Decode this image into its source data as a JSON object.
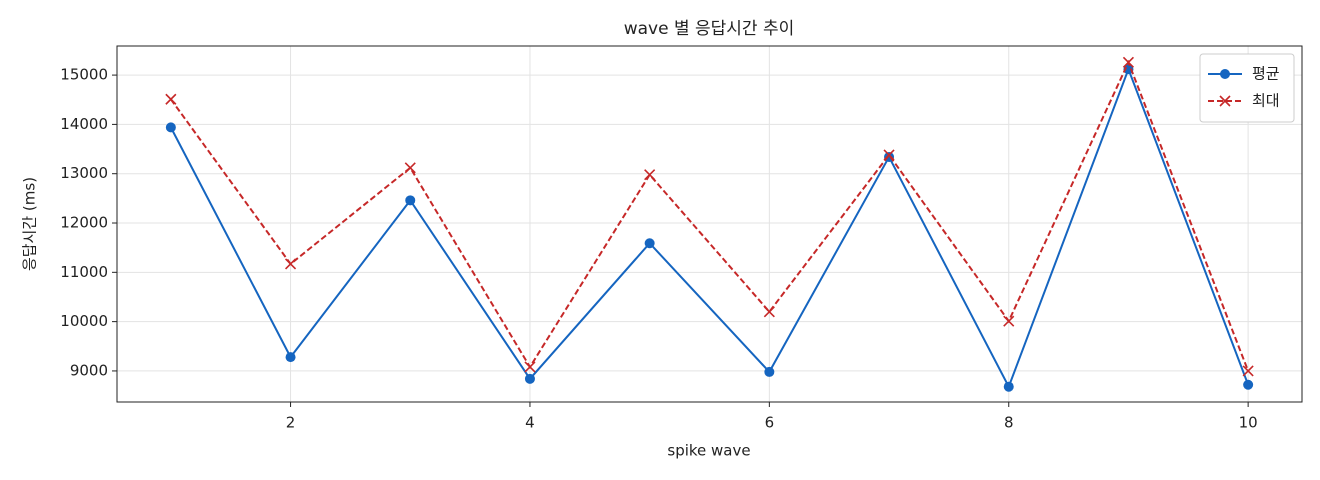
{
  "chart_data": {
    "type": "line",
    "title": "wave 별 응답시간 추이",
    "xlabel": "spike wave",
    "ylabel": "응답시간 (ms)",
    "x": [
      1,
      2,
      3,
      4,
      5,
      6,
      7,
      8,
      9,
      10
    ],
    "series": [
      {
        "name": "평균",
        "color": "#1565c0",
        "marker": "circle",
        "dash": false,
        "values": [
          13940,
          9280,
          12460,
          8840,
          11590,
          8980,
          13340,
          8680,
          15120,
          8720
        ]
      },
      {
        "name": "최대",
        "color": "#c62828",
        "marker": "x",
        "dash": true,
        "values": [
          14510,
          11170,
          13120,
          9080,
          12980,
          10200,
          13380,
          10010,
          15260,
          9000
        ]
      }
    ],
    "xlim": [
      0.55,
      10.45
    ],
    "xticks": [
      2,
      4,
      6,
      8,
      10
    ],
    "ylim": [
      8370,
      15590
    ],
    "yticks": [
      9000,
      10000,
      11000,
      12000,
      13000,
      14000,
      15000
    ],
    "grid": true,
    "legend": "upper right"
  }
}
